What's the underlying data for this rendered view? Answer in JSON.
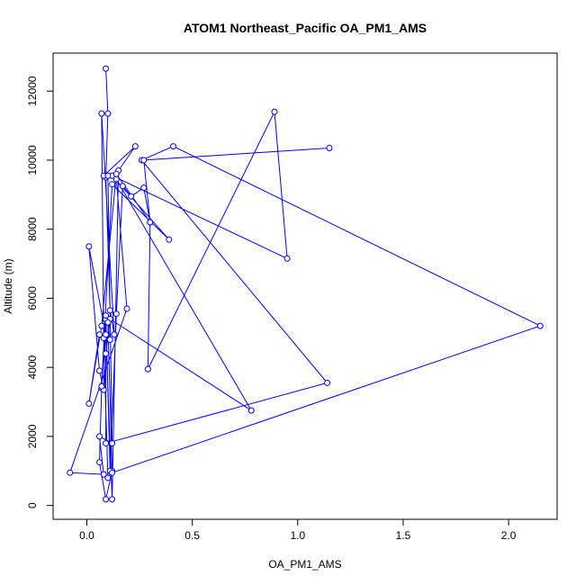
{
  "chart_data": {
    "type": "line",
    "title": "ATOM1 Northeast_Pacific OA_PM1_AMS",
    "xlabel": "OA_PM1_AMS",
    "ylabel": "Altitude (m)",
    "xlim": [
      -0.16,
      2.23
    ],
    "ylim": [
      -400,
      13100
    ],
    "xticks": [
      0.0,
      0.5,
      1.0,
      1.5,
      2.0
    ],
    "xtick_labels": [
      "0.0",
      "0.5",
      "1.0",
      "1.5",
      "2.0"
    ],
    "yticks": [
      0,
      2000,
      4000,
      6000,
      8000,
      10000,
      12000
    ],
    "ytick_labels": [
      "0",
      "2000",
      "4000",
      "6000",
      "8000",
      "10000",
      "12000"
    ],
    "marker": "open-circle",
    "grid": false,
    "series": [
      {
        "color": "#0000ff",
        "x": [
          0.09,
          0.1,
          0.09,
          0.11,
          0.13,
          0.07,
          0.08,
          0.1,
          0.12,
          0.09,
          0.06,
          0.07,
          0.09,
          0.08,
          0.06,
          0.01,
          0.09,
          0.12,
          0.15,
          0.23,
          0.08,
          0.12,
          0.39,
          0.12,
          0.07,
          0.09,
          0.11,
          0.14,
          0.17,
          0.21,
          0.27,
          0.3,
          0.29,
          0.89,
          0.95,
          0.12,
          0.1,
          0.12,
          0.06,
          0.08,
          -0.08,
          0.19,
          0.14,
          0.78,
          0.11,
          0.09,
          0.09,
          1.14,
          0.26,
          0.41,
          2.15,
          0.12,
          0.1,
          0.11,
          0.06,
          0.01,
          0.07,
          0.14,
          0.3,
          0.27,
          1.15
        ],
        "y": [
          12650,
          11350,
          9500,
          5650,
          4950,
          11350,
          4850,
          800,
          1000,
          180,
          1250,
          3400,
          5400,
          3350,
          3900,
          7500,
          4950,
          180,
          9700,
          10400,
          9550,
          9550,
          7700,
          9300,
          3450,
          5500,
          1000,
          5550,
          9250,
          8950,
          9200,
          8200,
          3950,
          11400,
          7150,
          9550,
          9550,
          1800,
          2000,
          900,
          950,
          5700,
          9450,
          2750,
          5400,
          4400,
          1800,
          3550,
          10000,
          10400,
          5200,
          950,
          5300,
          4800,
          4950,
          2950,
          5200,
          9600,
          8200,
          10000,
          10350
        ]
      }
    ]
  }
}
